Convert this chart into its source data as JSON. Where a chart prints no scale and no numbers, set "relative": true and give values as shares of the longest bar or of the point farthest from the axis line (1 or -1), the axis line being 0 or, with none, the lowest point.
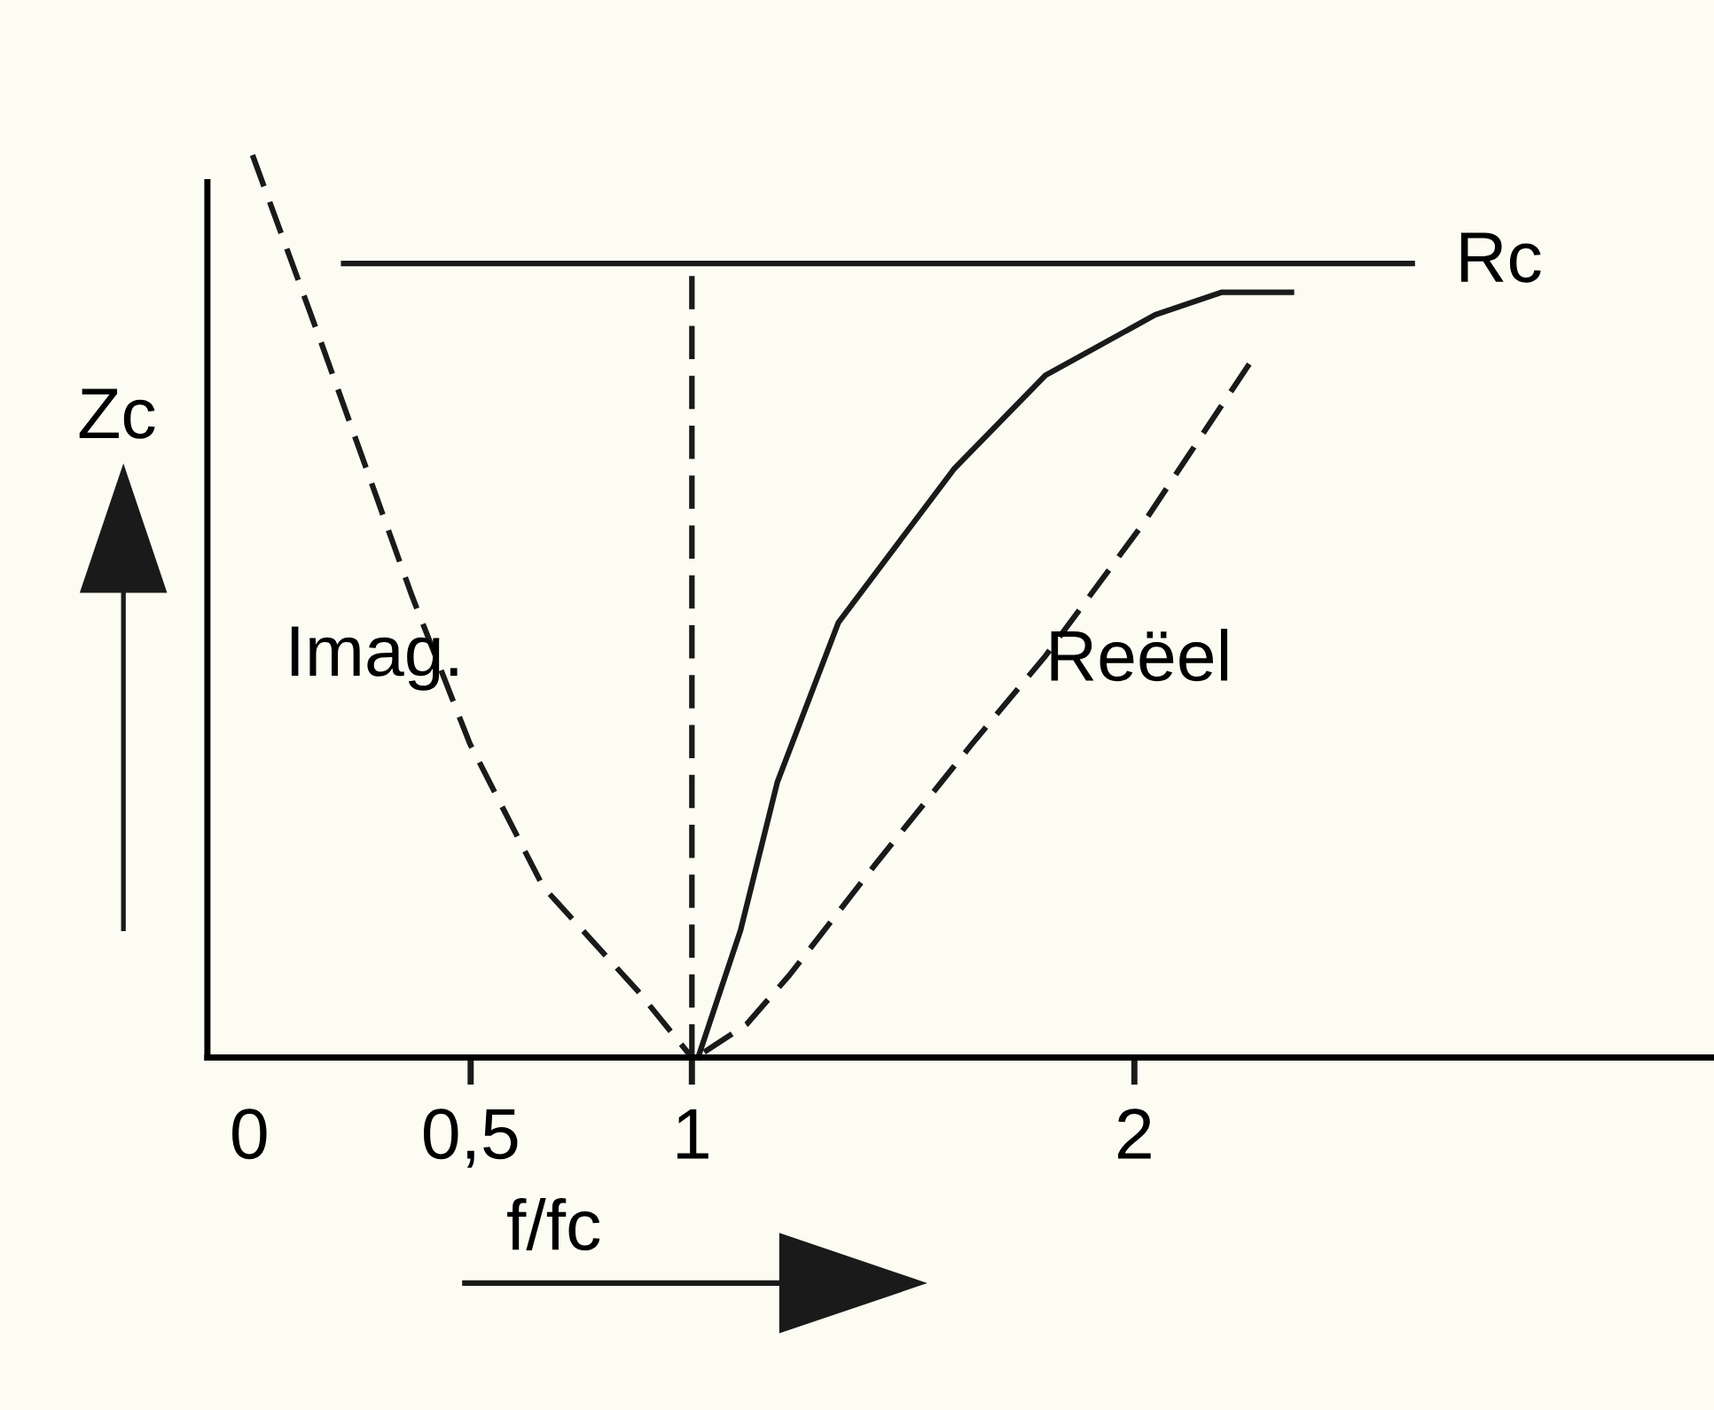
{
  "chart_data": {
    "type": "line",
    "relative": true,
    "xlabel": "f/fc",
    "ylabel": "Zc",
    "xlim": [
      -0.095,
      3.31
    ],
    "xticks": [
      {
        "value": 0,
        "label": "0"
      },
      {
        "value": 0.5,
        "label": "0,5"
      },
      1,
      2
    ],
    "grid": false,
    "legend": false,
    "marker": "none",
    "series": [
      {
        "name": "Imag.",
        "color": "#1a1a1a",
        "line_style": "dashed",
        "x": [
          0.007,
          0.166,
          0.367,
          0.498,
          0.664,
          0.879,
          1.0
        ],
        "values": [
          1.0,
          0.787,
          0.512,
          0.348,
          0.189,
          0.073,
          0.0
        ]
      },
      {
        "color": "#1a1a1a",
        "line_style": "solid",
        "x": [
          1.014,
          1.11,
          1.193,
          1.331,
          1.592,
          1.799,
          2.047,
          2.198,
          2.355
        ],
        "values": [
          0.0,
          0.141,
          0.305,
          0.482,
          0.652,
          0.756,
          0.823,
          0.848,
          0.848
        ]
      },
      {
        "name": "Reëel",
        "color": "#1a1a1a",
        "line_style": "dashed",
        "x": [
          1.028,
          1.124,
          1.22,
          1.413,
          1.634,
          1.799,
          2.019,
          2.267
        ],
        "values": [
          0.006,
          0.037,
          0.091,
          0.213,
          0.348,
          0.445,
          0.591,
          0.774
        ]
      },
      {
        "name": "Rc",
        "color": "#1a1a1a",
        "line_style": "solid",
        "x": [
          0.213,
          2.628
        ],
        "values": [
          0.88,
          0.88
        ]
      },
      {
        "color": "#1a1a1a",
        "line_style": "dashed",
        "x": [
          1.0,
          1.0
        ],
        "values": [
          0.0,
          0.88
        ]
      }
    ]
  }
}
